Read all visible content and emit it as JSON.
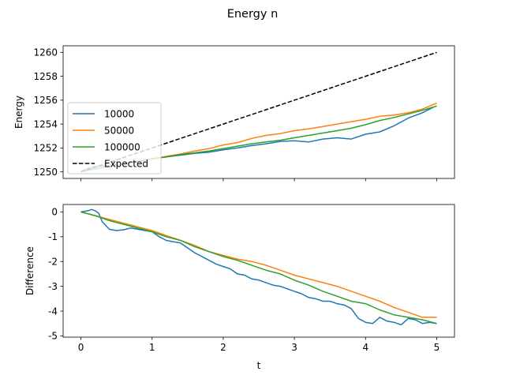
{
  "chart_data": {
    "title": "Energy n",
    "xlabel": "t",
    "xlim": [
      -0.25,
      5.25
    ],
    "xticks": [
      0,
      1,
      2,
      3,
      4,
      5
    ],
    "panels": [
      {
        "type": "line",
        "ylabel": "Energy",
        "ylim": [
          1249.45,
          1260.55
        ],
        "yticks": [
          1250,
          1252,
          1254,
          1256,
          1258,
          1260
        ],
        "show_xticklabels": false,
        "legend": {
          "position": "lower-left",
          "entries": [
            "10000",
            "50000",
            "100000",
            "Expected"
          ]
        },
        "series": [
          {
            "name": "10000",
            "color": "#1f77b4",
            "style": "solid",
            "x": [
              0,
              0.1,
              0.2,
              0.3,
              0.4,
              0.5,
              0.7,
              0.9,
              1.0,
              1.2,
              1.4,
              1.6,
              1.8,
              2.0,
              2.2,
              2.4,
              2.6,
              2.8,
              3.0,
              3.2,
              3.4,
              3.6,
              3.8,
              4.0,
              4.2,
              4.4,
              4.6,
              4.8,
              4.95
            ],
            "y": [
              1250.0,
              1250.3,
              1250.45,
              1250.5,
              1250.55,
              1250.6,
              1250.8,
              1251.0,
              1251.1,
              1251.25,
              1251.4,
              1251.55,
              1251.65,
              1251.85,
              1252.0,
              1252.2,
              1252.35,
              1252.55,
              1252.6,
              1252.5,
              1252.75,
              1252.85,
              1252.75,
              1253.15,
              1253.35,
              1253.85,
              1254.5,
              1254.95,
              1255.4
            ]
          },
          {
            "name": "50000",
            "color": "#ff7f0e",
            "style": "solid",
            "x": [
              0,
              0.2,
              0.4,
              0.6,
              0.8,
              1.0,
              1.2,
              1.4,
              1.6,
              1.8,
              2.0,
              2.2,
              2.4,
              2.6,
              2.8,
              3.0,
              3.2,
              3.4,
              3.6,
              3.8,
              4.0,
              4.2,
              4.4,
              4.6,
              4.8,
              5.0
            ],
            "y": [
              1250.0,
              1250.25,
              1250.5,
              1250.65,
              1250.85,
              1251.05,
              1251.3,
              1251.5,
              1251.75,
              1251.95,
              1252.25,
              1252.45,
              1252.8,
              1253.05,
              1253.2,
              1253.45,
              1253.6,
              1253.8,
              1254.0,
              1254.2,
              1254.4,
              1254.65,
              1254.75,
              1254.95,
              1255.25,
              1255.75
            ]
          },
          {
            "name": "100000",
            "color": "#2ca02c",
            "style": "solid",
            "x": [
              0,
              0.2,
              0.4,
              0.6,
              0.8,
              1.0,
              1.2,
              1.4,
              1.6,
              1.8,
              2.0,
              2.2,
              2.4,
              2.6,
              2.8,
              3.0,
              3.2,
              3.4,
              3.6,
              3.8,
              4.0,
              4.2,
              4.4,
              4.6,
              4.8,
              5.0
            ],
            "y": [
              1250.0,
              1250.25,
              1250.45,
              1250.65,
              1250.85,
              1251.1,
              1251.25,
              1251.45,
              1251.6,
              1251.75,
              1251.95,
              1252.15,
              1252.35,
              1252.5,
              1252.65,
              1252.85,
              1253.05,
              1253.25,
              1253.45,
              1253.65,
              1253.95,
              1254.3,
              1254.55,
              1254.85,
              1255.15,
              1255.5
            ]
          },
          {
            "name": "Expected",
            "color": "#000000",
            "style": "dashed",
            "x": [
              0,
              5
            ],
            "y": [
              1250,
              1260
            ]
          }
        ]
      },
      {
        "type": "line",
        "ylabel": "Difference",
        "ylim": [
          -5.05,
          0.3
        ],
        "yticks": [
          0,
          -1,
          -2,
          -3,
          -4,
          -5
        ],
        "show_xticklabels": true,
        "series": [
          {
            "name": "10000",
            "color": "#1f77b4",
            "style": "solid",
            "x": [
              0,
              0.1,
              0.15,
              0.2,
              0.25,
              0.3,
              0.4,
              0.5,
              0.6,
              0.7,
              0.8,
              0.9,
              1.0,
              1.1,
              1.2,
              1.3,
              1.4,
              1.5,
              1.6,
              1.7,
              1.8,
              1.9,
              2.0,
              2.1,
              2.2,
              2.3,
              2.4,
              2.5,
              2.6,
              2.7,
              2.8,
              2.9,
              3.0,
              3.1,
              3.2,
              3.3,
              3.4,
              3.5,
              3.6,
              3.7,
              3.8,
              3.9,
              4.0,
              4.1,
              4.2,
              4.3,
              4.4,
              4.5,
              4.6,
              4.7,
              4.8,
              4.9,
              5.0
            ],
            "y": [
              0,
              0.05,
              0.1,
              0.05,
              -0.05,
              -0.4,
              -0.7,
              -0.75,
              -0.72,
              -0.65,
              -0.7,
              -0.75,
              -0.8,
              -1.0,
              -1.15,
              -1.2,
              -1.25,
              -1.45,
              -1.65,
              -1.8,
              -1.95,
              -2.1,
              -2.2,
              -2.3,
              -2.5,
              -2.55,
              -2.7,
              -2.75,
              -2.85,
              -2.95,
              -3.0,
              -3.1,
              -3.2,
              -3.3,
              -3.45,
              -3.5,
              -3.6,
              -3.6,
              -3.7,
              -3.75,
              -3.9,
              -4.3,
              -4.45,
              -4.5,
              -4.25,
              -4.4,
              -4.45,
              -4.55,
              -4.3,
              -4.35,
              -4.5,
              -4.45,
              -4.5
            ]
          },
          {
            "name": "50000",
            "color": "#ff7f0e",
            "style": "solid",
            "x": [
              0,
              0.2,
              0.4,
              0.6,
              0.8,
              1.0,
              1.2,
              1.4,
              1.6,
              1.8,
              2.0,
              2.2,
              2.4,
              2.6,
              2.8,
              3.0,
              3.2,
              3.4,
              3.6,
              3.8,
              4.0,
              4.2,
              4.4,
              4.6,
              4.8,
              5.0
            ],
            "y": [
              0,
              -0.15,
              -0.3,
              -0.45,
              -0.6,
              -0.75,
              -0.95,
              -1.15,
              -1.35,
              -1.6,
              -1.75,
              -1.9,
              -2.0,
              -2.15,
              -2.35,
              -2.55,
              -2.7,
              -2.85,
              -3.0,
              -3.2,
              -3.4,
              -3.6,
              -3.85,
              -4.05,
              -4.25,
              -4.25
            ]
          },
          {
            "name": "100000",
            "color": "#2ca02c",
            "style": "solid",
            "x": [
              0,
              0.2,
              0.4,
              0.6,
              0.8,
              1.0,
              1.2,
              1.4,
              1.6,
              1.8,
              2.0,
              2.2,
              2.4,
              2.6,
              2.8,
              3.0,
              3.2,
              3.4,
              3.6,
              3.8,
              4.0,
              4.2,
              4.4,
              4.6,
              4.8,
              5.0
            ],
            "y": [
              0,
              -0.15,
              -0.35,
              -0.5,
              -0.65,
              -0.8,
              -1.0,
              -1.15,
              -1.4,
              -1.6,
              -1.8,
              -1.95,
              -2.15,
              -2.35,
              -2.5,
              -2.75,
              -2.95,
              -3.2,
              -3.4,
              -3.6,
              -3.7,
              -3.95,
              -4.15,
              -4.25,
              -4.35,
              -4.5
            ]
          }
        ]
      }
    ]
  }
}
